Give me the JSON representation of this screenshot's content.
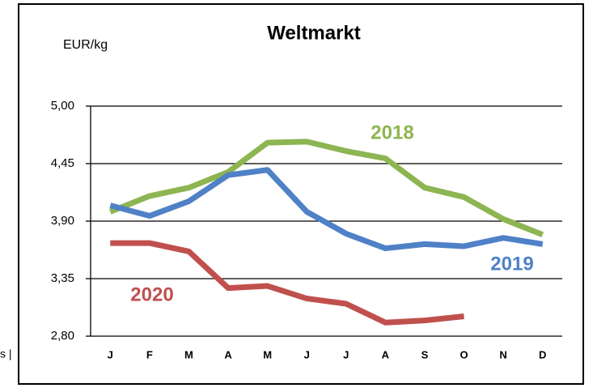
{
  "fragment": "s |",
  "chart_data": {
    "type": "line",
    "title": "Weltmarkt",
    "y_label": "EUR/kg",
    "categories": [
      "J",
      "F",
      "M",
      "A",
      "M",
      "J",
      "J",
      "A",
      "S",
      "O",
      "N",
      "D"
    ],
    "series": [
      {
        "name": "2018",
        "color": "#8db551",
        "values": [
          3.99,
          4.14,
          4.22,
          4.37,
          4.65,
          4.66,
          4.57,
          4.5,
          4.22,
          4.13,
          3.92,
          3.77
        ]
      },
      {
        "name": "2019",
        "color": "#4f81c7",
        "values": [
          4.05,
          3.95,
          4.09,
          4.34,
          4.39,
          3.99,
          3.78,
          3.64,
          3.68,
          3.66,
          3.74,
          3.68
        ]
      },
      {
        "name": "2020",
        "color": "#c0504d",
        "values": [
          3.69,
          3.69,
          3.61,
          3.26,
          3.28,
          3.16,
          3.11,
          2.93,
          2.95,
          2.99,
          null,
          null
        ]
      }
    ],
    "ylim": [
      2.8,
      5.0
    ],
    "yticks": [
      {
        "value": 2.8,
        "label": "2,80"
      },
      {
        "value": 3.35,
        "label": "3,35"
      },
      {
        "value": 3.9,
        "label": "3,90"
      },
      {
        "value": 4.45,
        "label": "4,45"
      },
      {
        "value": 5.0,
        "label": "5,00"
      }
    ],
    "grid": true
  }
}
